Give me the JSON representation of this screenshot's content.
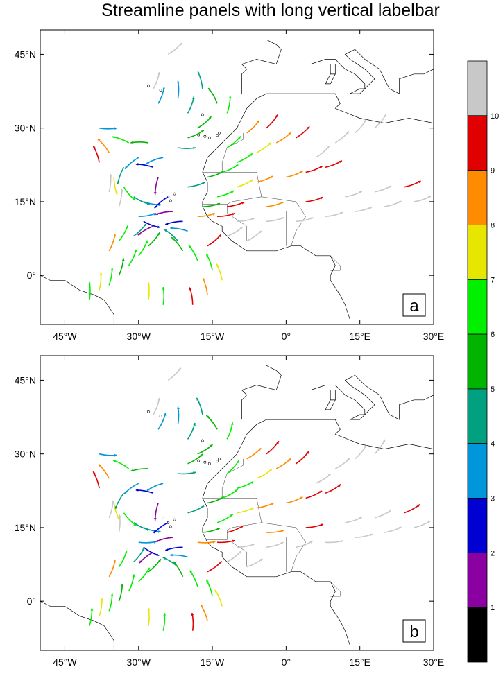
{
  "title": "Streamline panels with long vertical labelbar",
  "map": {
    "lon_range": [
      -50,
      30
    ],
    "lat_range": [
      -10,
      50
    ],
    "lon_ticks": [
      {
        "value": -45,
        "label": "45°W"
      },
      {
        "value": -30,
        "label": "30°W"
      },
      {
        "value": -15,
        "label": "15°W"
      },
      {
        "value": 0,
        "label": "0°"
      },
      {
        "value": 15,
        "label": "15°E"
      },
      {
        "value": 30,
        "label": "30°E"
      }
    ],
    "lat_ticks": [
      {
        "value": 45,
        "label": "45°N"
      },
      {
        "value": 30,
        "label": "30°N"
      },
      {
        "value": 15,
        "label": "15°N"
      },
      {
        "value": 0,
        "label": "0°"
      }
    ]
  },
  "panels": [
    {
      "id": "a",
      "label": "a"
    },
    {
      "id": "b",
      "label": "b"
    }
  ],
  "labelbar": {
    "boundaries": [
      "1",
      "2",
      "3",
      "4",
      "5",
      "6",
      "7",
      "8",
      "9",
      "10"
    ],
    "colors": [
      "#000000",
      "#8a00a0",
      "#0000d2",
      "#0096dc",
      "#00a080",
      "#00b400",
      "#00f000",
      "#e6e600",
      "#ff8c00",
      "#e00000",
      "#c8c8c8"
    ]
  }
}
